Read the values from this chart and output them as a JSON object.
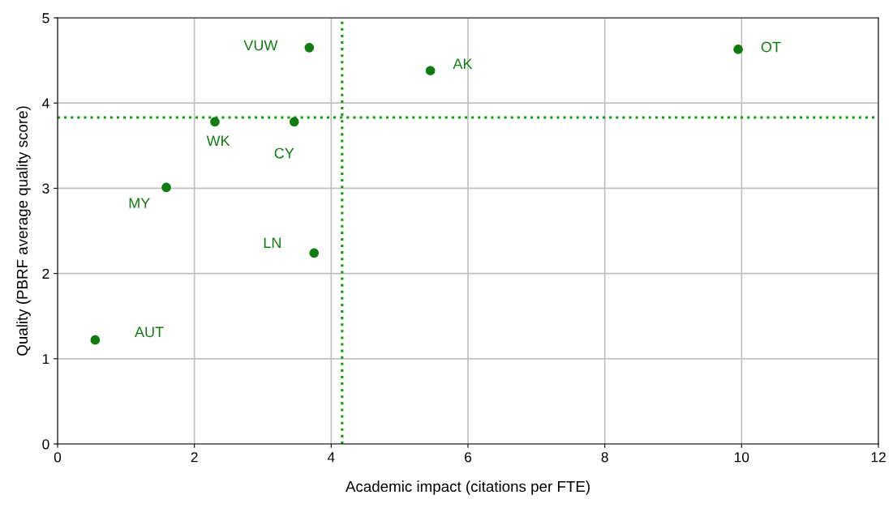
{
  "chart_data": {
    "type": "scatter",
    "xlabel": "Academic impact (citations per FTE)",
    "ylabel": "Quality (PBRF average quality score)",
    "x": [
      3.68,
      5.45,
      9.95,
      2.3,
      3.46,
      1.59,
      3.75,
      0.55
    ],
    "series": [
      {
        "color": "#107c10",
        "values": [
          4.65,
          4.38,
          4.63,
          3.78,
          3.78,
          3.01,
          2.24,
          1.22
        ]
      }
    ],
    "annotations": [
      {
        "text": "VUW",
        "x": 3.68,
        "y": 4.65
      },
      {
        "text": "AK",
        "x": 5.45,
        "y": 4.38
      },
      {
        "text": "OT",
        "x": 9.95,
        "y": 4.63
      },
      {
        "text": "WK",
        "x": 2.3,
        "y": 3.78
      },
      {
        "text": "CY",
        "x": 3.46,
        "y": 3.78
      },
      {
        "text": "MY",
        "x": 1.59,
        "y": 3.01
      },
      {
        "text": "LN",
        "x": 3.75,
        "y": 2.24
      },
      {
        "text": "AUT",
        "x": 0.55,
        "y": 1.22
      }
    ],
    "ref_lines": [
      {
        "axis": "x",
        "value": 4.16,
        "color": "#119911",
        "line_style": "dotted"
      },
      {
        "axis": "y",
        "value": 3.83,
        "color": "#119911",
        "line_style": "dotted"
      }
    ],
    "xlim": [
      0,
      12
    ],
    "xticks": [
      0,
      2,
      4,
      6,
      8,
      10,
      12
    ],
    "ylim": [
      0,
      5
    ],
    "yticks": [
      0,
      1,
      2,
      3,
      4,
      5
    ],
    "grid": true,
    "marker": "circle"
  }
}
